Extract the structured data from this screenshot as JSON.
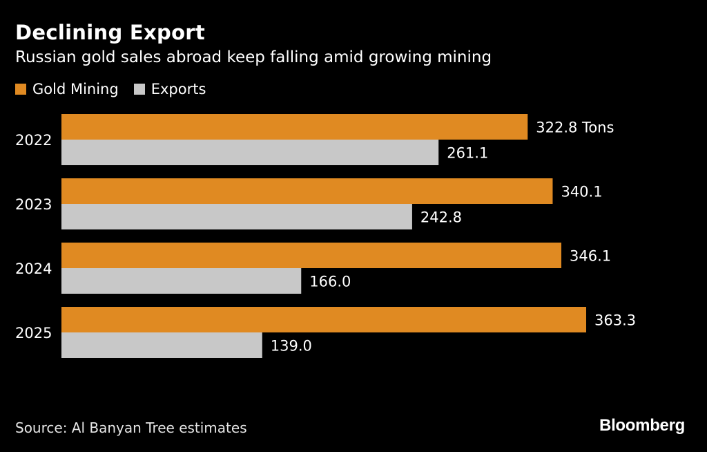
{
  "title": "Declining Export",
  "subtitle": "Russian gold sales abroad keep falling amid growing mining",
  "legend": [
    {
      "label": "Gold Mining",
      "color": "#e08a22"
    },
    {
      "label": "Exports",
      "color": "#c8c8c8"
    }
  ],
  "source": "Source: Al Banyan Tree estimates",
  "brand": "Bloomberg",
  "chart_data": {
    "type": "bar",
    "orientation": "horizontal",
    "categories": [
      "2022",
      "2023",
      "2024",
      "2025"
    ],
    "series": [
      {
        "name": "Gold Mining",
        "color": "#e08a22",
        "values": [
          322.8,
          340.1,
          346.1,
          363.3
        ],
        "labels": [
          "322.8 Tons",
          "340.1",
          "346.1",
          "363.3"
        ]
      },
      {
        "name": "Exports",
        "color": "#c8c8c8",
        "values": [
          261.1,
          242.8,
          166.0,
          139.0
        ],
        "labels": [
          "261.1",
          "242.8",
          "166.0",
          "139.0"
        ]
      }
    ],
    "title": "Declining Export",
    "xlabel": "",
    "ylabel": "",
    "xlim": [
      0,
      363.3
    ]
  }
}
